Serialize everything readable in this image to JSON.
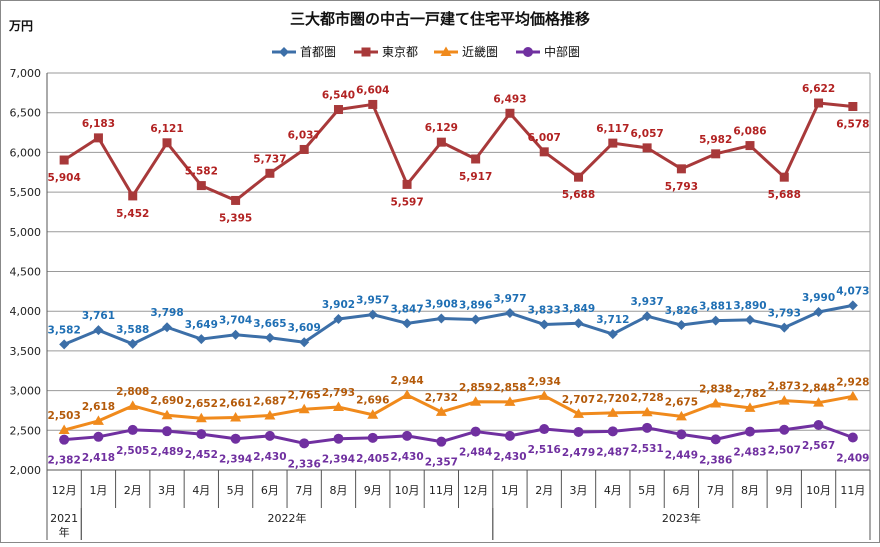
{
  "chart_data": {
    "type": "line",
    "title": "三大都市圏の中古一戸建て住宅平均価格推移",
    "ylabel": "万円",
    "ylim": [
      2000,
      7000
    ],
    "yticks": [
      "2,000",
      "2,500",
      "3,000",
      "3,500",
      "4,000",
      "4,500",
      "5,000",
      "5,500",
      "6,000",
      "6,500",
      "7,000"
    ],
    "grid": true,
    "legend_position": "top",
    "categories": [
      "12月",
      "1月",
      "2月",
      "3月",
      "4月",
      "5月",
      "6月",
      "7月",
      "8月",
      "9月",
      "10月",
      "11月",
      "12月",
      "1月",
      "2月",
      "3月",
      "4月",
      "5月",
      "6月",
      "7月",
      "8月",
      "9月",
      "10月",
      "11月"
    ],
    "year_groups": [
      {
        "label": "2021年",
        "start": 0,
        "end": 0
      },
      {
        "label": "2022年",
        "start": 1,
        "end": 12
      },
      {
        "label": "2023年",
        "start": 13,
        "end": 23
      }
    ],
    "series": [
      {
        "name": "首都圏",
        "color": "#3C6FA8",
        "label_color": "#1F6FB4",
        "marker": "diamond",
        "values": [
          3582,
          3761,
          3588,
          3798,
          3649,
          3704,
          3665,
          3609,
          3902,
          3957,
          3847,
          3908,
          3896,
          3977,
          3833,
          3849,
          3712,
          3937,
          3826,
          3881,
          3890,
          3793,
          3990,
          4073
        ]
      },
      {
        "name": "東京都",
        "color": "#A8393A",
        "label_color": "#B22222",
        "marker": "square",
        "values": [
          5904,
          6183,
          5452,
          6121,
          5582,
          5395,
          5737,
          6037,
          6540,
          6604,
          5597,
          6129,
          5917,
          6493,
          6007,
          5688,
          6117,
          6057,
          5793,
          5982,
          6086,
          5688,
          6622,
          6578
        ]
      },
      {
        "name": "近畿圏",
        "color": "#F08A1C",
        "label_color": "#B45A0A",
        "marker": "triangle",
        "values": [
          2503,
          2618,
          2808,
          2690,
          2652,
          2661,
          2687,
          2765,
          2793,
          2696,
          2944,
          2732,
          2859,
          2858,
          2934,
          2707,
          2720,
          2728,
          2675,
          2838,
          2782,
          2873,
          2848,
          2928
        ]
      },
      {
        "name": "中部圏",
        "color": "#7030A0",
        "label_color": "#7030A0",
        "marker": "circle",
        "values": [
          2382,
          2418,
          2505,
          2489,
          2452,
          2394,
          2430,
          2336,
          2394,
          2405,
          2430,
          2357,
          2484,
          2430,
          2516,
          2479,
          2487,
          2531,
          2449,
          2386,
          2483,
          2507,
          2567,
          2409
        ]
      }
    ]
  }
}
